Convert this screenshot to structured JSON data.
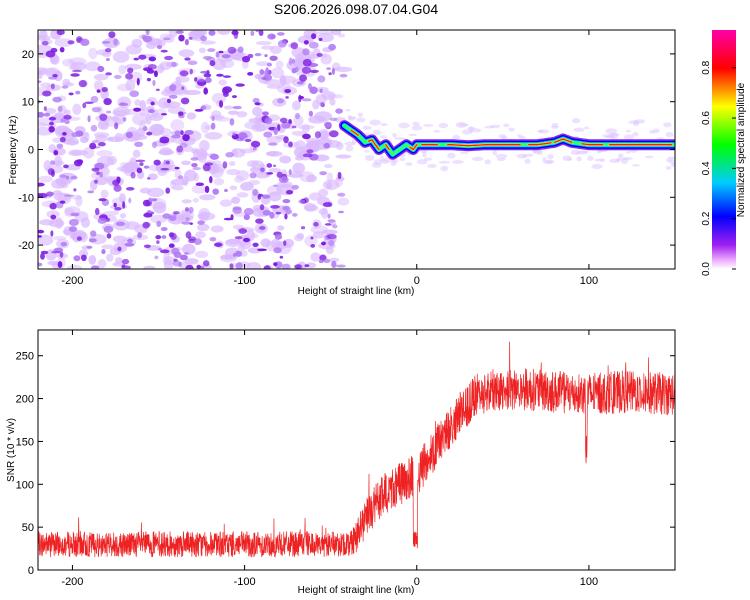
{
  "title": "S206.2026.098.07.04.G04",
  "colors": {
    "snr_line": "#ee2222",
    "speckle": "#7b1be0",
    "background": "#ffffff",
    "axis": "#000000"
  },
  "chart_data": [
    {
      "type": "heatmap",
      "name": "spectrogram",
      "xlabel": "Height of straight line (km)",
      "ylabel": "Frequency (Hz)",
      "xlim": [
        -220,
        150
      ],
      "ylim": [
        -25,
        25
      ],
      "xticks": [
        -200,
        -100,
        0,
        100
      ],
      "xtick_labels": [
        "-200",
        "-100",
        "0",
        "100"
      ],
      "yticks": [
        -20,
        -10,
        0,
        10,
        20
      ],
      "ytick_labels": [
        "-20",
        "-10",
        "0",
        "10",
        "20"
      ],
      "signal_onset_km": -42,
      "ridge": {
        "x": [
          -42,
          -38,
          -34,
          -30,
          -26,
          -22,
          -18,
          -14,
          -10,
          -6,
          -2,
          0,
          10,
          20,
          30,
          40,
          50,
          60,
          70,
          80,
          85,
          90,
          100,
          110,
          120,
          130,
          140,
          150
        ],
        "y": [
          5,
          4,
          3,
          1.5,
          2,
          0,
          1,
          -1,
          0,
          1,
          0,
          1,
          1,
          1,
          0.8,
          1,
          1,
          1,
          1,
          1.5,
          2.2,
          1.5,
          1,
          1,
          1,
          1,
          1,
          1
        ]
      },
      "colorbar": {
        "label": "Normalized spectral amplitude",
        "range": [
          0,
          0.95
        ],
        "ticks": [
          0.0,
          0.2,
          0.4,
          0.6,
          0.8
        ],
        "tick_labels": [
          "0.0",
          "0.2",
          "0.4",
          "0.6",
          "0.8"
        ],
        "colormap": "rainbow (white-magenta-blue-cyan-green-yellow-red)"
      }
    },
    {
      "type": "line",
      "name": "snr",
      "xlabel": "Height of straight line (km)",
      "ylabel": "SNR (10 * v/v)",
      "xlim": [
        -220,
        150
      ],
      "ylim": [
        0,
        280
      ],
      "xticks": [
        -200,
        -100,
        0,
        100
      ],
      "xtick_labels": [
        "-200",
        "-100",
        "0",
        "100"
      ],
      "yticks": [
        0,
        50,
        100,
        150,
        200,
        250
      ],
      "ytick_labels": [
        "0",
        "50",
        "100",
        "150",
        "200",
        "250"
      ],
      "series": [
        {
          "name": "SNR",
          "envelope_x": [
            -220,
            -40,
            -35,
            -25,
            -15,
            -5,
            0,
            5,
            15,
            25,
            35,
            45,
            60,
            80,
            100,
            120,
            150
          ],
          "envelope_y": [
            30,
            30,
            40,
            75,
            95,
            105,
            110,
            125,
            155,
            180,
            205,
            210,
            212,
            208,
            205,
            208,
            205
          ],
          "noise_amplitude": [
            15,
            15,
            20,
            25,
            25,
            25,
            25,
            25,
            25,
            25,
            25,
            25,
            25,
            25,
            25,
            25,
            25
          ]
        }
      ]
    }
  ]
}
